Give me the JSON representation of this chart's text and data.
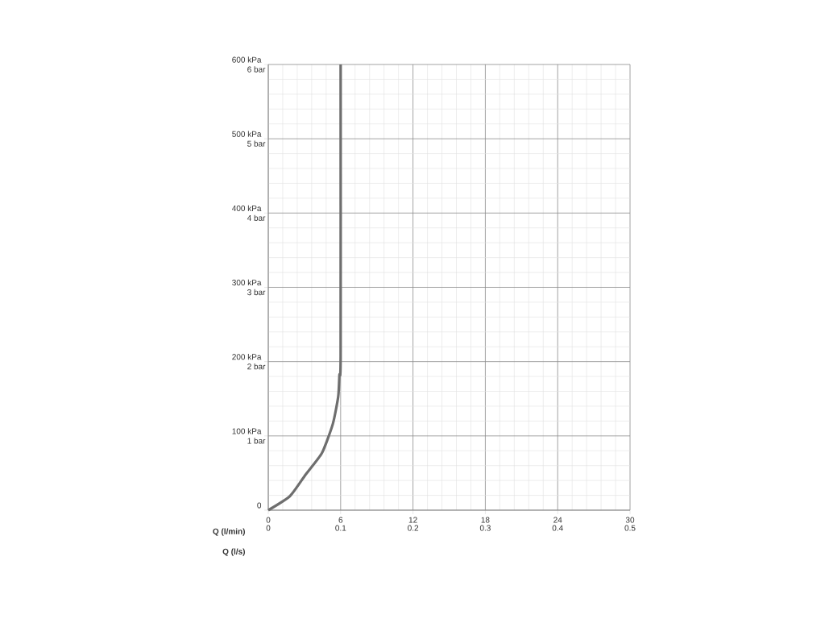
{
  "chart_data": {
    "type": "line",
    "xlabel": "Q (l/min)",
    "x2label": "Q (l/s)",
    "xlim": [
      0,
      30
    ],
    "xticks": [
      0,
      6,
      12,
      18,
      24,
      30
    ],
    "x2lim": [
      0,
      0.5
    ],
    "x2ticks": [
      0,
      0.1,
      0.2,
      0.3,
      0.4,
      0.5
    ],
    "ylim": [
      0,
      600
    ],
    "yticks": [
      0,
      {
        "value": 100,
        "label": "100 kPa"
      },
      {
        "value": 200,
        "label": "200 kPa"
      },
      {
        "value": 300,
        "label": "300 kPa"
      },
      {
        "value": 400,
        "label": "400 kPa"
      },
      {
        "value": 500,
        "label": "500 kPa"
      },
      {
        "value": 600,
        "label": "600 kPa"
      }
    ],
    "y2lim": [
      0,
      6
    ],
    "y2ticks": [
      {
        "value": 0,
        "label": null
      },
      {
        "value": 1,
        "label": "1 bar"
      },
      {
        "value": 2,
        "label": "2 bar"
      },
      {
        "value": 3,
        "label": "3 bar"
      },
      {
        "value": 4,
        "label": "4 bar"
      },
      {
        "value": 5,
        "label": "5 bar"
      },
      {
        "value": 6,
        "label": "6 bar"
      }
    ],
    "grid": true,
    "series": [
      {
        "color": "#6e6e6e",
        "x": [
          0,
          1.8,
          3.1,
          4.45,
          5.35,
          5.8,
          5.9,
          6.0,
          6.0
        ],
        "values": [
          0,
          19,
          48,
          77,
          116,
          153,
          182,
          207,
          600
        ]
      }
    ]
  }
}
